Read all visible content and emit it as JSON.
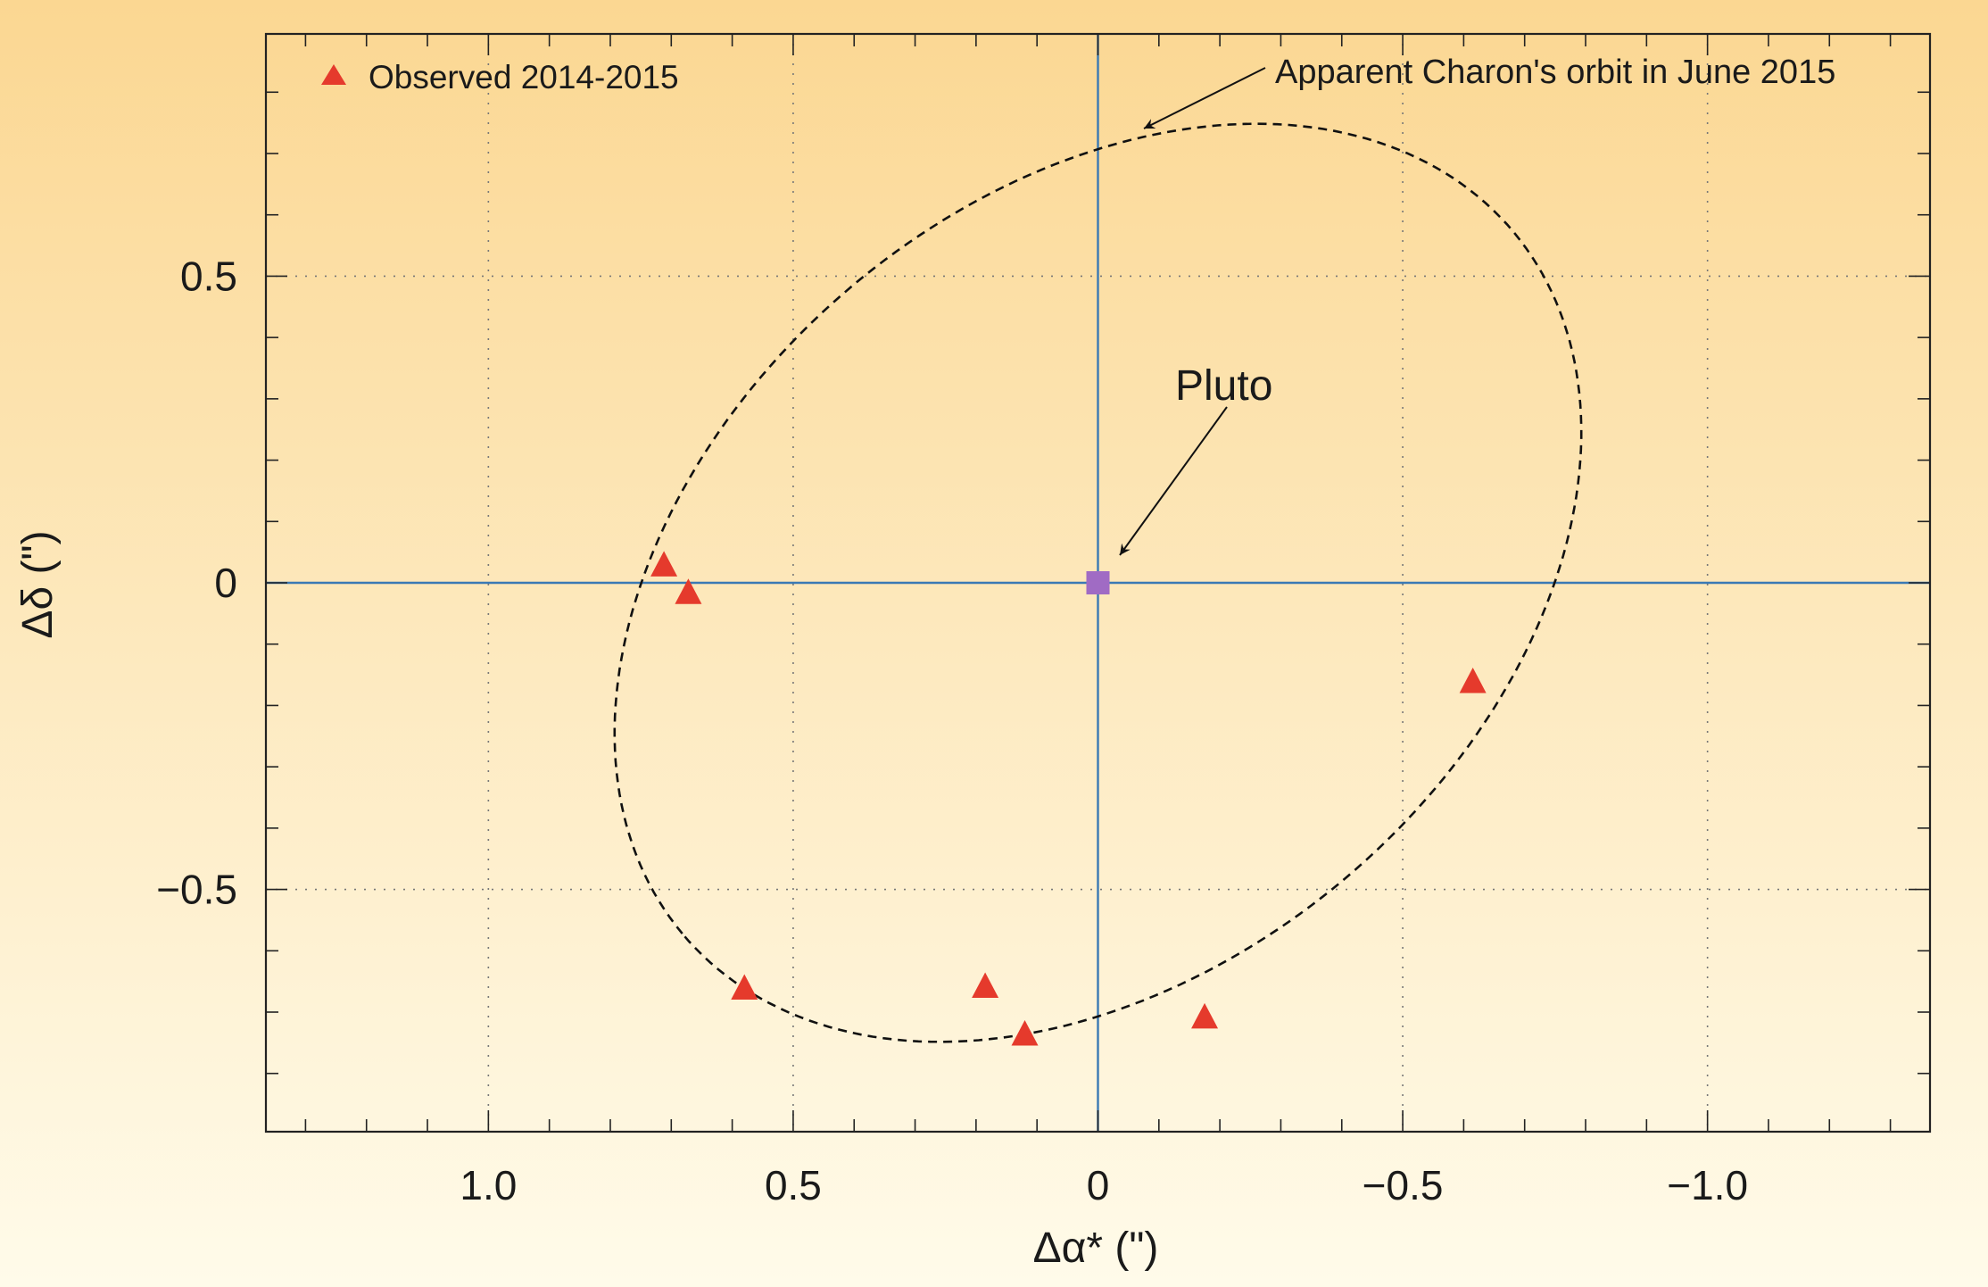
{
  "chart_data": {
    "type": "scatter",
    "xlabel": "Δα*  (\")",
    "ylabel": "Δδ (\")",
    "xlim": [
      1.365,
      -1.365
    ],
    "ylim": [
      -0.895,
      0.895
    ],
    "x_ticks": [
      {
        "value": 1.0,
        "label": "1.0"
      },
      {
        "value": 0.5,
        "label": "0.5"
      },
      {
        "value": 0,
        "label": "0"
      },
      {
        "value": -0.5,
        "label": "−0.5"
      },
      {
        "value": -1.0,
        "label": "−1.0"
      }
    ],
    "y_ticks": [
      {
        "value": 0.5,
        "label": "0.5"
      },
      {
        "value": 0,
        "label": "0"
      },
      {
        "value": -0.5,
        "label": "−0.5"
      }
    ],
    "x_minor_step": 0.1,
    "y_minor_step": 0.1,
    "grid": "dotted",
    "legend_position": "top-left",
    "series": [
      {
        "name": "Observed 2014-2015",
        "marker": "triangle",
        "color": "#e53a2c",
        "points": [
          {
            "x": 0.712,
            "y": 0.03
          },
          {
            "x": 0.672,
            "y": -0.015
          },
          {
            "x": 0.58,
            "y": -0.66
          },
          {
            "x": 0.185,
            "y": -0.657
          },
          {
            "x": 0.12,
            "y": -0.735
          },
          {
            "x": -0.175,
            "y": -0.707
          },
          {
            "x": -0.615,
            "y": -0.16
          }
        ]
      }
    ],
    "pluto": {
      "x": 0,
      "y": 0,
      "marker": "square",
      "color": "#a06bc4",
      "label": "Pluto"
    },
    "orbit": {
      "label": "Apparent Charon's orbit in June 2015",
      "style": "dashed",
      "center": {
        "x": 0.0,
        "y": 0.0
      },
      "semi_major": 0.89,
      "semi_minor": 0.63,
      "rotation_deg": -40
    },
    "reference_lines": {
      "x": 0,
      "y": 0,
      "color": "#3a79b4"
    },
    "colors": {
      "background_top": "#fbd792",
      "background_bottom": "#fffbea",
      "triangle": "#e53a2c",
      "pluto": "#a06bc4",
      "crosshair": "#3a79b4"
    }
  }
}
